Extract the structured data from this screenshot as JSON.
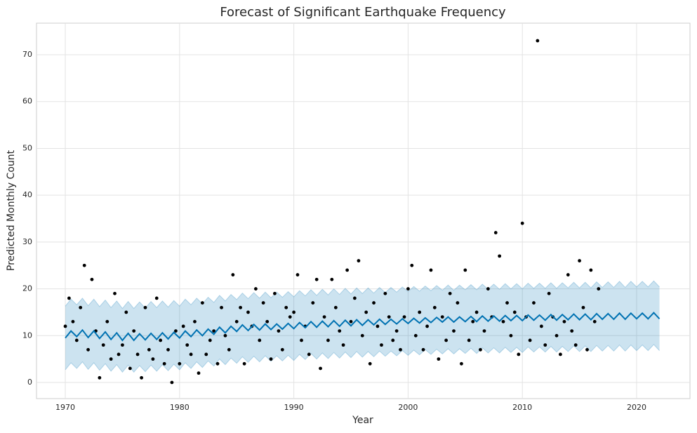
{
  "chart_data": {
    "type": "line",
    "title": "Forecast of Significant Earthquake Frequency",
    "xlabel": "Year",
    "ylabel": "Predicted Monthly Count",
    "xlim": [
      1967.48,
      2024.67
    ],
    "ylim": [
      -3.45,
      76.75
    ],
    "xticks": [
      1970,
      1980,
      1990,
      2000,
      2010,
      2020
    ],
    "yticks": [
      0,
      10,
      20,
      30,
      40,
      50,
      60,
      70
    ],
    "grid": true,
    "points": {
      "color": "#000000",
      "x": [
        1970.0,
        1970.33,
        1970.67,
        1971.0,
        1971.33,
        1971.67,
        1972.0,
        1972.33,
        1972.67,
        1973.0,
        1973.33,
        1973.67,
        1974.0,
        1974.33,
        1974.67,
        1975.0,
        1975.33,
        1975.67,
        1976.0,
        1976.33,
        1976.67,
        1977.0,
        1977.33,
        1977.67,
        1978.0,
        1978.33,
        1978.67,
        1979.0,
        1979.33,
        1979.67,
        1980.0,
        1980.33,
        1980.67,
        1981.0,
        1981.33,
        1981.67,
        1982.0,
        1982.33,
        1982.67,
        1983.0,
        1983.33,
        1983.67,
        1984.0,
        1984.33,
        1984.67,
        1985.0,
        1985.33,
        1985.67,
        1986.0,
        1986.33,
        1986.67,
        1987.0,
        1987.33,
        1987.67,
        1988.0,
        1988.33,
        1988.67,
        1989.0,
        1989.33,
        1989.67,
        1990.0,
        1990.33,
        1990.67,
        1991.0,
        1991.33,
        1991.67,
        1992.0,
        1992.33,
        1992.67,
        1993.0,
        1993.33,
        1993.67,
        1994.0,
        1994.33,
        1994.67,
        1995.0,
        1995.33,
        1995.67,
        1996.0,
        1996.33,
        1996.67,
        1997.0,
        1997.33,
        1997.67,
        1998.0,
        1998.33,
        1998.67,
        1999.0,
        1999.33,
        1999.67,
        2000.0,
        2000.33,
        2000.67,
        2001.0,
        2001.33,
        2001.67,
        2002.0,
        2002.33,
        2002.67,
        2003.0,
        2003.33,
        2003.67,
        2004.0,
        2004.33,
        2004.67,
        2005.0,
        2005.33,
        2005.67,
        2006.0,
        2006.33,
        2006.67,
        2007.0,
        2007.33,
        2007.67,
        2008.0,
        2008.33,
        2008.67,
        2009.0,
        2009.33,
        2009.67,
        2010.0,
        2010.33,
        2010.67,
        2011.0,
        2011.33,
        2011.67,
        2012.0,
        2012.33,
        2012.67,
        2013.0,
        2013.33,
        2013.67,
        2014.0,
        2014.33,
        2014.67,
        2015.0,
        2015.33,
        2015.67,
        2016.0,
        2016.33,
        2016.67
      ],
      "values": [
        12,
        18,
        13,
        9,
        16,
        25,
        7,
        22,
        11,
        1,
        8,
        13,
        5,
        19,
        6,
        8,
        15,
        3,
        11,
        6,
        1,
        16,
        7,
        5,
        18,
        9,
        4,
        7,
        0,
        11,
        4,
        12,
        8,
        6,
        13,
        2,
        17,
        6,
        9,
        11,
        4,
        16,
        10,
        7,
        23,
        13,
        16,
        4,
        15,
        12,
        20,
        9,
        17,
        13,
        5,
        19,
        11,
        7,
        16,
        14,
        15,
        23,
        9,
        12,
        6,
        17,
        22,
        3,
        14,
        9,
        22,
        16,
        11,
        8,
        24,
        13,
        18,
        26,
        10,
        15,
        4,
        17,
        12,
        8,
        19,
        14,
        9,
        11,
        7,
        14,
        20,
        25,
        10,
        15,
        7,
        12,
        24,
        16,
        5,
        14,
        9,
        19,
        11,
        17,
        4,
        24,
        9,
        13,
        15,
        7,
        11,
        20,
        14,
        32,
        27,
        13,
        17,
        10,
        15,
        6,
        34,
        14,
        9,
        17,
        73,
        12,
        8,
        19,
        14,
        10,
        6,
        13,
        23,
        11,
        8,
        26,
        16,
        7,
        24,
        13,
        20
      ]
    },
    "forecast": {
      "color": "#0072b2",
      "band_color": "#0072b2",
      "x": [
        1970,
        1970.5,
        1971,
        1971.5,
        1972,
        1972.5,
        1973,
        1973.5,
        1974,
        1974.5,
        1975,
        1975.5,
        1976,
        1976.5,
        1977,
        1977.5,
        1978,
        1978.5,
        1979,
        1979.5,
        1980,
        1980.5,
        1981,
        1981.5,
        1982,
        1982.5,
        1983,
        1983.5,
        1984,
        1984.5,
        1985,
        1985.5,
        1986,
        1986.5,
        1987,
        1987.5,
        1988,
        1988.5,
        1989,
        1989.5,
        1990,
        1990.5,
        1991,
        1991.5,
        1992,
        1992.5,
        1993,
        1993.5,
        1994,
        1994.5,
        1995,
        1995.5,
        1996,
        1996.5,
        1997,
        1997.5,
        1998,
        1998.5,
        1999,
        1999.5,
        2000,
        2000.5,
        2001,
        2001.5,
        2002,
        2002.5,
        2003,
        2003.5,
        2004,
        2004.5,
        2005,
        2005.5,
        2006,
        2006.5,
        2007,
        2007.5,
        2008,
        2008.5,
        2009,
        2009.5,
        2010,
        2010.5,
        2011,
        2011.5,
        2012,
        2012.5,
        2013,
        2013.5,
        2014,
        2014.5,
        2015,
        2015.5,
        2016,
        2016.5,
        2017,
        2017.5,
        2018,
        2018.5,
        2019,
        2019.5,
        2020,
        2020.5,
        2021,
        2021.5,
        2022
      ],
      "values": [
        9.5,
        11,
        9.8,
        11.2,
        9.6,
        11,
        9.4,
        10.8,
        9.2,
        10.6,
        9,
        10.5,
        9,
        10.4,
        9.1,
        10.5,
        9.2,
        10.6,
        9.3,
        10.7,
        9.5,
        11,
        9.8,
        11.2,
        10,
        11.4,
        10.3,
        11.8,
        10.6,
        12,
        10.9,
        12.3,
        11.1,
        12.4,
        11.2,
        12.5,
        11.3,
        12.5,
        11.4,
        12.6,
        11.5,
        12.8,
        11.7,
        13,
        11.8,
        13.1,
        11.9,
        13.2,
        12,
        13.3,
        12.1,
        13.4,
        12.2,
        13.4,
        12.3,
        13.5,
        12.4,
        13.5,
        12.5,
        13.6,
        12.6,
        13.7,
        12.7,
        13.8,
        12.8,
        13.9,
        12.9,
        14,
        12.9,
        14,
        13,
        14.1,
        13,
        14.2,
        13.1,
        14.2,
        13.1,
        14.3,
        13.2,
        14.3,
        13.2,
        14.4,
        13.3,
        14.4,
        13.3,
        14.5,
        13.3,
        14.5,
        13.4,
        14.6,
        13.4,
        14.6,
        13.4,
        14.7,
        13.5,
        14.7,
        13.5,
        14.8,
        13.5,
        14.8,
        13.6,
        14.8,
        13.6,
        14.9,
        13.6
      ],
      "lower": [
        2.7,
        4.2,
        3.0,
        4.4,
        2.8,
        4.2,
        2.6,
        4.0,
        2.4,
        3.8,
        2.2,
        3.7,
        2.2,
        3.6,
        2.3,
        3.7,
        2.4,
        3.8,
        2.5,
        3.9,
        2.7,
        4.2,
        3.0,
        4.4,
        3.2,
        4.6,
        3.5,
        5.0,
        3.8,
        5.2,
        4.1,
        5.5,
        4.3,
        5.6,
        4.4,
        5.7,
        4.5,
        5.7,
        4.6,
        5.8,
        4.7,
        6.0,
        4.9,
        6.2,
        5.0,
        6.3,
        5.1,
        6.4,
        5.2,
        6.5,
        5.3,
        6.6,
        5.4,
        6.6,
        5.5,
        6.7,
        5.6,
        6.7,
        5.7,
        6.8,
        5.8,
        6.9,
        5.9,
        7.0,
        6.0,
        7.1,
        6.1,
        7.2,
        6.1,
        7.2,
        6.2,
        7.3,
        6.2,
        7.4,
        6.3,
        7.4,
        6.3,
        7.5,
        6.4,
        7.5,
        6.4,
        7.6,
        6.5,
        7.6,
        6.5,
        7.7,
        6.5,
        7.7,
        6.6,
        7.8,
        6.6,
        7.8,
        6.6,
        7.9,
        6.7,
        7.9,
        6.7,
        8.0,
        6.7,
        8.0,
        6.8,
        8.0,
        6.8,
        8.1,
        6.8
      ],
      "upper": [
        16.3,
        17.8,
        16.6,
        18.0,
        16.4,
        17.8,
        16.2,
        17.6,
        16.0,
        17.4,
        15.8,
        17.3,
        15.8,
        17.2,
        15.9,
        17.3,
        16.0,
        17.4,
        16.1,
        17.5,
        16.3,
        17.8,
        16.6,
        18.0,
        16.8,
        18.2,
        17.1,
        18.6,
        17.4,
        18.8,
        17.7,
        19.1,
        17.9,
        19.2,
        18.0,
        19.3,
        18.1,
        19.3,
        18.2,
        19.4,
        18.3,
        19.6,
        18.5,
        19.8,
        18.6,
        19.9,
        18.7,
        20.0,
        18.8,
        20.1,
        18.9,
        20.2,
        19.0,
        20.2,
        19.1,
        20.3,
        19.2,
        20.3,
        19.3,
        20.4,
        19.4,
        20.5,
        19.5,
        20.6,
        19.6,
        20.7,
        19.7,
        20.8,
        19.7,
        20.8,
        19.8,
        20.9,
        19.8,
        21.0,
        19.9,
        21.0,
        19.9,
        21.1,
        20.0,
        21.1,
        20.0,
        21.2,
        20.1,
        21.2,
        20.1,
        21.3,
        20.1,
        21.3,
        20.2,
        21.4,
        20.2,
        21.4,
        20.2,
        21.5,
        20.3,
        21.5,
        20.3,
        21.6,
        20.3,
        21.6,
        20.4,
        21.6,
        20.4,
        21.7,
        20.4
      ]
    }
  }
}
